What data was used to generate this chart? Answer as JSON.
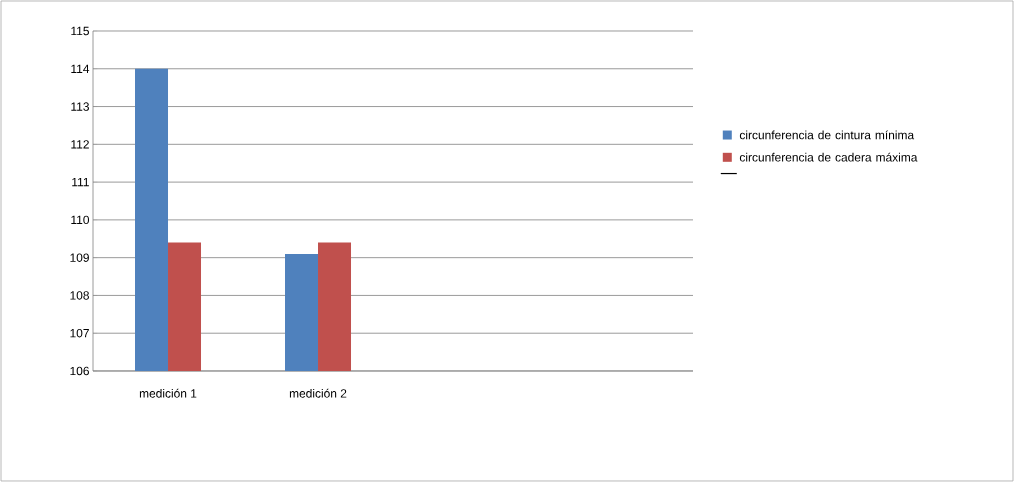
{
  "chart_data": {
    "type": "bar",
    "categories": [
      "medición 1",
      "medición 2",
      null,
      null
    ],
    "series": [
      {
        "name": "circunferencia de cintura mínima",
        "color": "#4f81bd",
        "values": [
          114,
          109.1,
          null,
          null
        ]
      },
      {
        "name": "circunferencia de cadera máxima",
        "color": "#c0504d",
        "values": [
          109.4,
          109.4,
          null,
          null
        ]
      },
      {
        "type": "line",
        "color": "#000000",
        "values": [
          null,
          null,
          null,
          null
        ]
      }
    ],
    "ylim": [
      106,
      115
    ],
    "yticks": [
      106,
      107,
      108,
      109,
      110,
      111,
      112,
      113,
      114,
      115
    ],
    "grid": "y",
    "legend": "right"
  }
}
